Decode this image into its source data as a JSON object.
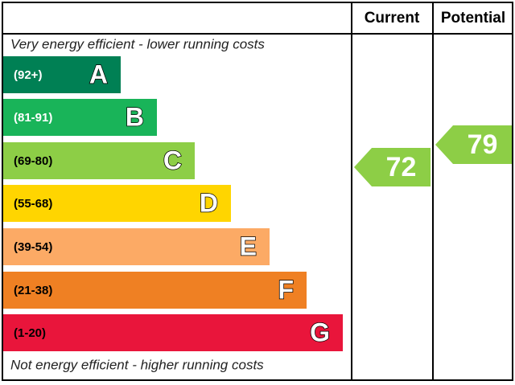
{
  "header": {
    "current": "Current",
    "potential": "Potential"
  },
  "top_note": "Very energy efficient - lower running costs",
  "bottom_note": "Not energy efficient - higher running costs",
  "bands": [
    {
      "range": "(92+)",
      "letter": "A",
      "color": "#008054",
      "text_color": "#ffffff"
    },
    {
      "range": "(81-91)",
      "letter": "B",
      "color": "#19b459",
      "text_color": "#ffffff"
    },
    {
      "range": "(69-80)",
      "letter": "C",
      "color": "#8dce46",
      "text_color": "#000000"
    },
    {
      "range": "(55-68)",
      "letter": "D",
      "color": "#ffd500",
      "text_color": "#000000"
    },
    {
      "range": "(39-54)",
      "letter": "E",
      "color": "#fcaa65",
      "text_color": "#000000"
    },
    {
      "range": "(21-38)",
      "letter": "F",
      "color": "#ef8023",
      "text_color": "#000000"
    },
    {
      "range": "(1-20)",
      "letter": "G",
      "color": "#e9153b",
      "text_color": "#000000"
    }
  ],
  "current": {
    "value": 72,
    "color": "#8dce46"
  },
  "potential": {
    "value": 79,
    "color": "#8dce46"
  }
}
